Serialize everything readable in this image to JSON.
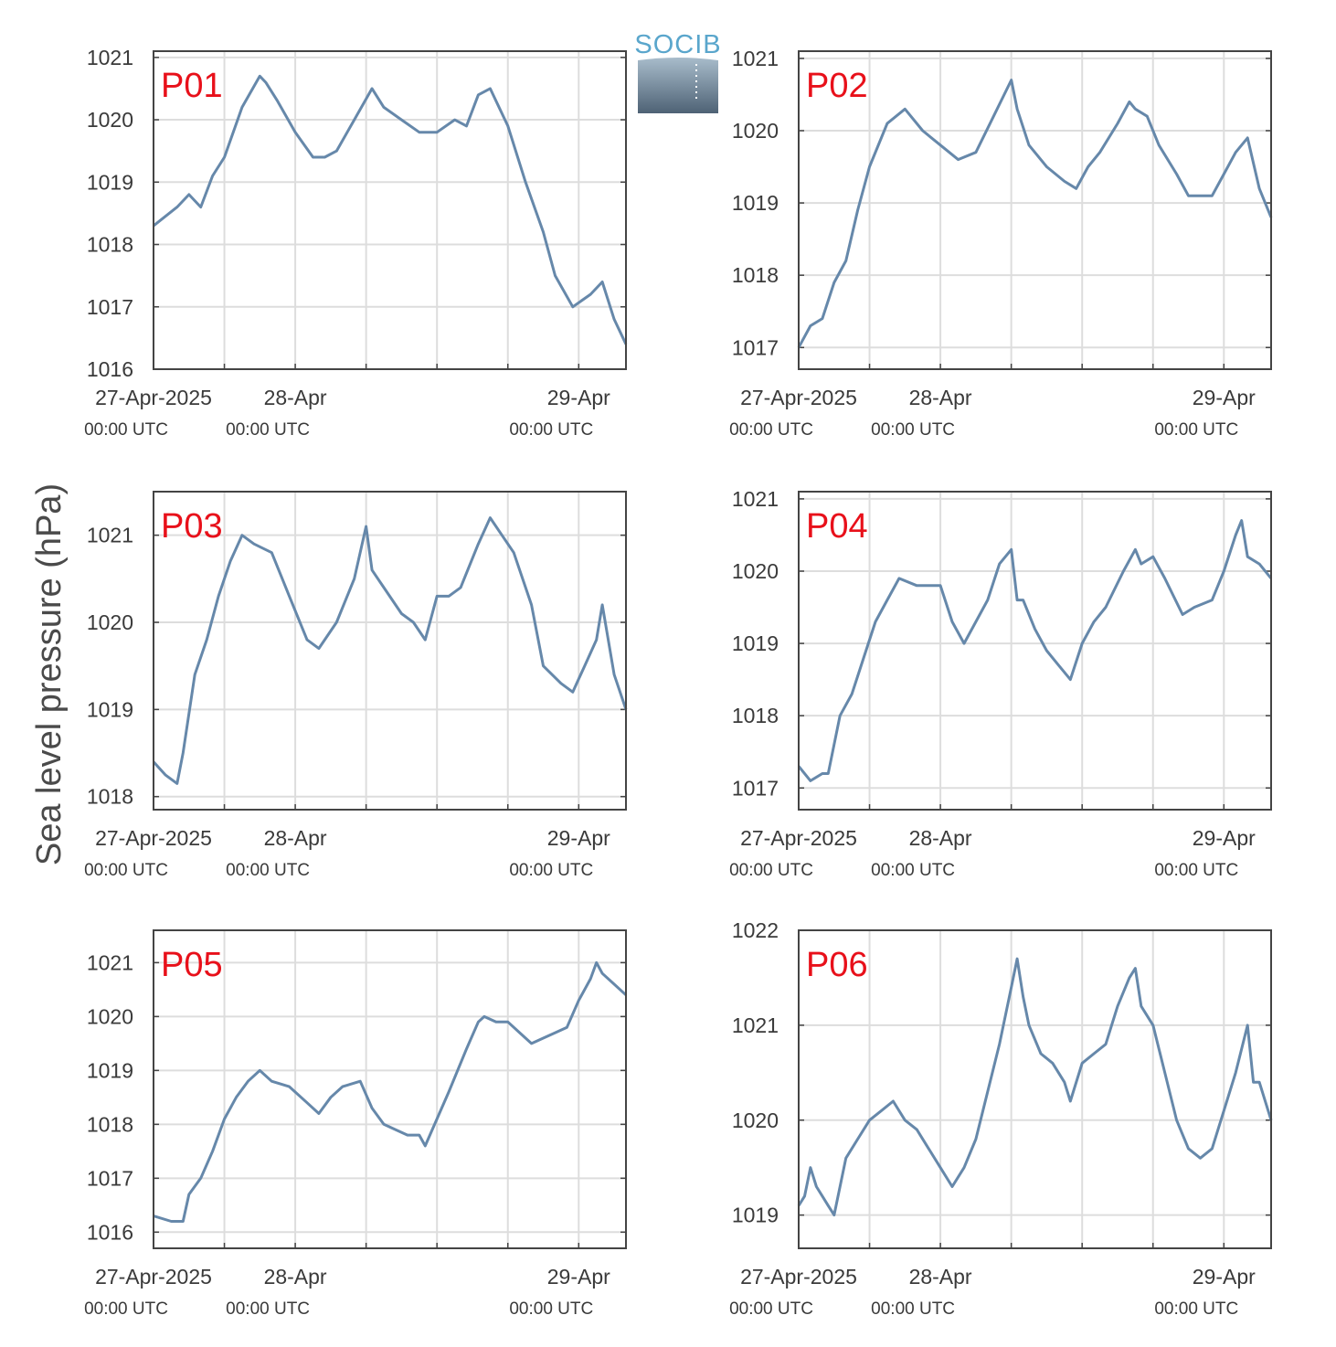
{
  "figure": {
    "ylabel": "Sea level pressure (hPa)",
    "logo_text": "SOCIB",
    "line_color": "#6688aa",
    "label_color": "#e8101a"
  },
  "chart_data": [
    {
      "type": "line",
      "label": "P01",
      "ylim": [
        1016,
        1021.1
      ],
      "yticks": [
        1016,
        1017,
        1018,
        1019,
        1020,
        1021
      ],
      "xticks": [
        {
          "date": "27-Apr-2025",
          "time": "00:00 UTC"
        },
        {
          "date": "28-Apr",
          "time": "00:00 UTC"
        },
        {
          "date": "29-Apr",
          "time": "00:00 UTC"
        }
      ],
      "x_hours": [
        0,
        4,
        6,
        8,
        10,
        12,
        15,
        18,
        19,
        21,
        24,
        27,
        29,
        31,
        34,
        37,
        39,
        42,
        45,
        48,
        51,
        53,
        55,
        57,
        60,
        63,
        66,
        68,
        71,
        74,
        76,
        78,
        80
      ],
      "values": [
        1018.3,
        1018.6,
        1018.8,
        1018.6,
        1019.1,
        1019.4,
        1020.2,
        1020.7,
        1020.6,
        1020.3,
        1019.8,
        1019.4,
        1019.4,
        1019.5,
        1020.0,
        1020.5,
        1020.2,
        1020.0,
        1019.8,
        1019.8,
        1020.0,
        1019.9,
        1020.4,
        1020.5,
        1019.9,
        1019.0,
        1018.2,
        1017.5,
        1017.0,
        1017.2,
        1017.4,
        1016.8,
        1016.4
      ],
      "grid": true
    },
    {
      "type": "line",
      "label": "P02",
      "ylim": [
        1016.7,
        1021.1
      ],
      "yticks": [
        1017,
        1018,
        1019,
        1020,
        1021
      ],
      "xticks": [
        {
          "date": "27-Apr-2025",
          "time": "00:00 UTC"
        },
        {
          "date": "28-Apr",
          "time": "00:00 UTC"
        },
        {
          "date": "29-Apr",
          "time": "00:00 UTC"
        }
      ],
      "x_hours": [
        0,
        2,
        4,
        6,
        8,
        10,
        12,
        15,
        18,
        21,
        24,
        27,
        30,
        33,
        36,
        37,
        39,
        42,
        45,
        47,
        49,
        51,
        54,
        56,
        57,
        59,
        61,
        64,
        66,
        70,
        72,
        74,
        76,
        78,
        80
      ],
      "values": [
        1017.0,
        1017.3,
        1017.4,
        1017.9,
        1018.2,
        1018.9,
        1019.5,
        1020.1,
        1020.3,
        1020.0,
        1019.8,
        1019.6,
        1019.7,
        1020.2,
        1020.7,
        1020.3,
        1019.8,
        1019.5,
        1019.3,
        1019.2,
        1019.5,
        1019.7,
        1020.1,
        1020.4,
        1020.3,
        1020.2,
        1019.8,
        1019.4,
        1019.1,
        1019.1,
        1019.4,
        1019.7,
        1019.9,
        1019.2,
        1018.8
      ],
      "grid": true
    },
    {
      "type": "line",
      "label": "P03",
      "ylim": [
        1017.85,
        1021.5
      ],
      "yticks": [
        1018,
        1019,
        1020,
        1021
      ],
      "xticks": [
        {
          "date": "27-Apr-2025",
          "time": "00:00 UTC"
        },
        {
          "date": "28-Apr",
          "time": "00:00 UTC"
        },
        {
          "date": "29-Apr",
          "time": "00:00 UTC"
        }
      ],
      "x_hours": [
        0,
        2,
        4,
        5,
        7,
        9,
        11,
        13,
        15,
        17,
        20,
        23,
        26,
        28,
        31,
        34,
        36,
        37,
        39,
        42,
        44,
        46,
        48,
        50,
        52,
        55,
        57,
        59,
        61,
        64,
        66,
        69,
        71,
        73,
        75,
        76,
        78,
        80
      ],
      "values": [
        1018.4,
        1018.25,
        1018.15,
        1018.5,
        1019.4,
        1019.8,
        1020.3,
        1020.7,
        1021.0,
        1020.9,
        1020.8,
        1020.3,
        1019.8,
        1019.7,
        1020.0,
        1020.5,
        1021.1,
        1020.6,
        1020.4,
        1020.1,
        1020.0,
        1019.8,
        1020.3,
        1020.3,
        1020.4,
        1020.9,
        1021.2,
        1021.0,
        1020.8,
        1020.2,
        1019.5,
        1019.3,
        1019.2,
        1019.5,
        1019.8,
        1020.2,
        1019.4,
        1019.0
      ],
      "grid": true
    },
    {
      "type": "line",
      "label": "P04",
      "ylim": [
        1016.7,
        1021.1
      ],
      "yticks": [
        1017,
        1018,
        1019,
        1020,
        1021
      ],
      "xticks": [
        {
          "date": "27-Apr-2025",
          "time": "00:00 UTC"
        },
        {
          "date": "28-Apr",
          "time": "00:00 UTC"
        },
        {
          "date": "29-Apr",
          "time": "00:00 UTC"
        }
      ],
      "x_hours": [
        0,
        2,
        4,
        5,
        7,
        9,
        11,
        13,
        15,
        17,
        20,
        24,
        26,
        28,
        30,
        32,
        34,
        36,
        37,
        38,
        40,
        42,
        44,
        46,
        48,
        50,
        52,
        55,
        57,
        58,
        60,
        62,
        65,
        67,
        70,
        72,
        74,
        75,
        76,
        78,
        80
      ],
      "values": [
        1017.3,
        1017.1,
        1017.2,
        1017.2,
        1018.0,
        1018.3,
        1018.8,
        1019.3,
        1019.6,
        1019.9,
        1019.8,
        1019.8,
        1019.3,
        1019.0,
        1019.3,
        1019.6,
        1020.1,
        1020.3,
        1019.6,
        1019.6,
        1019.2,
        1018.9,
        1018.7,
        1018.5,
        1019.0,
        1019.3,
        1019.5,
        1020.0,
        1020.3,
        1020.1,
        1020.2,
        1019.9,
        1019.4,
        1019.5,
        1019.6,
        1020.0,
        1020.5,
        1020.7,
        1020.2,
        1020.1,
        1019.9
      ],
      "grid": true
    },
    {
      "type": "line",
      "label": "P05",
      "ylim": [
        1015.7,
        1021.6
      ],
      "yticks": [
        1016,
        1017,
        1018,
        1019,
        1020,
        1021
      ],
      "xticks": [
        {
          "date": "27-Apr-2025",
          "time": "00:00 UTC"
        },
        {
          "date": "28-Apr",
          "time": "00:00 UTC"
        },
        {
          "date": "29-Apr",
          "time": "00:00 UTC"
        }
      ],
      "x_hours": [
        0,
        3,
        5,
        6,
        8,
        10,
        12,
        14,
        16,
        18,
        20,
        23,
        26,
        28,
        30,
        32,
        35,
        37,
        39,
        41,
        43,
        45,
        46,
        48,
        50,
        53,
        55,
        56,
        58,
        60,
        62,
        64,
        66,
        68,
        70,
        72,
        74,
        75,
        76,
        78,
        80
      ],
      "values": [
        1016.3,
        1016.2,
        1016.2,
        1016.7,
        1017.0,
        1017.5,
        1018.1,
        1018.5,
        1018.8,
        1019.0,
        1018.8,
        1018.7,
        1018.4,
        1018.2,
        1018.5,
        1018.7,
        1018.8,
        1018.3,
        1018.0,
        1017.9,
        1017.8,
        1017.8,
        1017.6,
        1018.1,
        1018.6,
        1019.4,
        1019.9,
        1020.0,
        1019.9,
        1019.9,
        1019.7,
        1019.5,
        1019.6,
        1019.7,
        1019.8,
        1020.3,
        1020.7,
        1021.0,
        1020.8,
        1020.6,
        1020.4
      ],
      "grid": true
    },
    {
      "type": "line",
      "label": "P06",
      "ylim": [
        1018.65,
        1022
      ],
      "yticks": [
        1019,
        1020,
        1021,
        1022
      ],
      "xticks": [
        {
          "date": "27-Apr-2025",
          "time": "00:00 UTC"
        },
        {
          "date": "28-Apr",
          "time": "00:00 UTC"
        },
        {
          "date": "29-Apr",
          "time": "00:00 UTC"
        }
      ],
      "x_hours": [
        0,
        1,
        2,
        3,
        4,
        5,
        6,
        8,
        10,
        12,
        14,
        16,
        18,
        20,
        22,
        24,
        26,
        28,
        30,
        32,
        34,
        36,
        37,
        38,
        39,
        41,
        43,
        45,
        46,
        48,
        50,
        52,
        54,
        56,
        57,
        58,
        60,
        62,
        64,
        66,
        68,
        70,
        72,
        74,
        76,
        77,
        78,
        80
      ],
      "values": [
        1019.1,
        1019.2,
        1019.5,
        1019.3,
        1019.2,
        1019.1,
        1019.0,
        1019.6,
        1019.8,
        1020.0,
        1020.1,
        1020.2,
        1020.0,
        1019.9,
        1019.7,
        1019.5,
        1019.3,
        1019.5,
        1019.8,
        1020.3,
        1020.8,
        1021.4,
        1021.7,
        1021.3,
        1021.0,
        1020.7,
        1020.6,
        1020.4,
        1020.2,
        1020.6,
        1020.7,
        1020.8,
        1021.2,
        1021.5,
        1021.6,
        1021.2,
        1021.0,
        1020.5,
        1020.0,
        1019.7,
        1019.6,
        1019.7,
        1020.1,
        1020.5,
        1021.0,
        1020.4,
        1020.4,
        1020.0
      ],
      "grid": true
    }
  ]
}
